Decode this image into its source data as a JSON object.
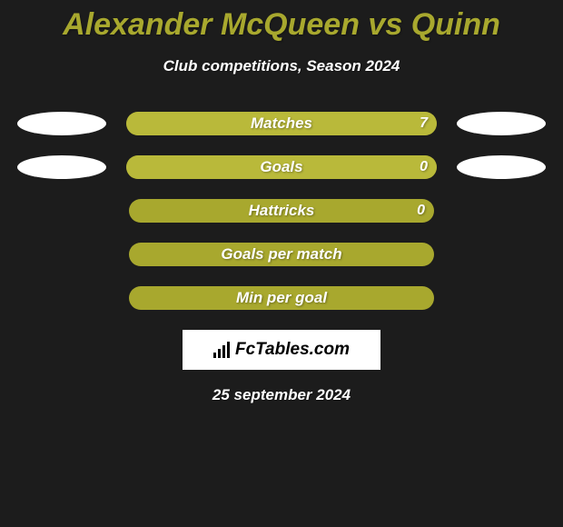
{
  "background_color": "#1c1c1c",
  "title": {
    "text": "Alexander McQueen vs Quinn",
    "color": "#a8a82e",
    "fontsize": 34
  },
  "subtitle": {
    "text": "Club competitions, Season 2024",
    "color": "#ffffff",
    "fontsize": 17
  },
  "ellipse_color": "#ffffff",
  "bar_track_color": "#a8a82e",
  "bar_fill_color": "#b9b93a",
  "bar_label_color": "#ffffff",
  "stats": [
    {
      "label": "Matches",
      "value_left": null,
      "value_right": "7",
      "fill_left_pct": 0,
      "fill_right_pct": 100,
      "show_ellipses": true
    },
    {
      "label": "Goals",
      "value_left": null,
      "value_right": "0",
      "fill_left_pct": 0,
      "fill_right_pct": 100,
      "show_ellipses": true
    },
    {
      "label": "Hattricks",
      "value_left": null,
      "value_right": "0",
      "fill_left_pct": 0,
      "fill_right_pct": 0,
      "show_ellipses": false
    },
    {
      "label": "Goals per match",
      "value_left": null,
      "value_right": null,
      "fill_left_pct": 0,
      "fill_right_pct": 0,
      "show_ellipses": false
    },
    {
      "label": "Min per goal",
      "value_left": null,
      "value_right": null,
      "fill_left_pct": 0,
      "fill_right_pct": 0,
      "show_ellipses": false
    }
  ],
  "logo": {
    "text": "FcTables.com",
    "box_bg": "#ffffff"
  },
  "date": {
    "text": "25 september 2024",
    "color": "#ffffff"
  }
}
